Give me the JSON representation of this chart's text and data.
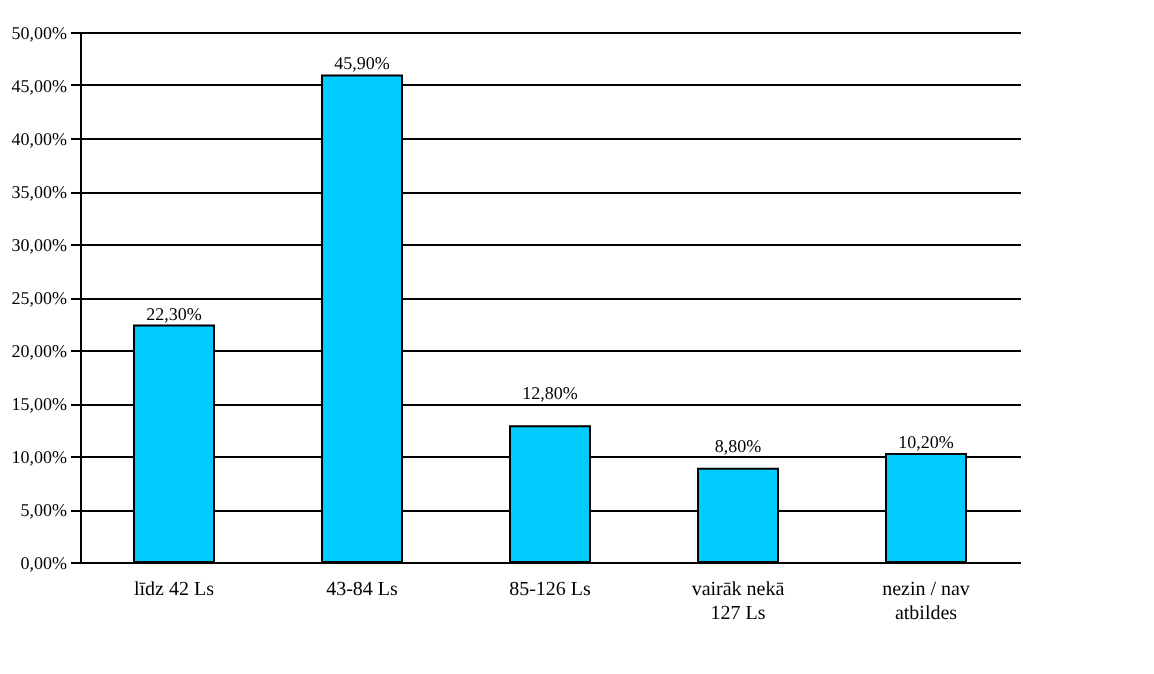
{
  "chart_data": {
    "type": "bar",
    "categories": [
      "līdz 42 Ls",
      "43-84 Ls",
      "85-126 Ls",
      "vairāk nekā 127 Ls",
      "nezin / nav atbildes"
    ],
    "values": [
      22.3,
      45.9,
      12.8,
      8.8,
      10.2
    ],
    "value_labels": [
      "22,30%",
      "45,90%",
      "12,80%",
      "8,80%",
      "10,20%"
    ],
    "color": "#00ccff",
    "ylim": [
      0,
      50
    ],
    "yticks": [
      {
        "value": 0,
        "label": "0,00%"
      },
      {
        "value": 5,
        "label": "5,00%"
      },
      {
        "value": 10,
        "label": "10,00%"
      },
      {
        "value": 15,
        "label": "15,00%"
      },
      {
        "value": 20,
        "label": "20,00%"
      },
      {
        "value": 25,
        "label": "25,00%"
      },
      {
        "value": 30,
        "label": "30,00%"
      },
      {
        "value": 35,
        "label": "35,00%"
      },
      {
        "value": 40,
        "label": "40,00%"
      },
      {
        "value": 45,
        "label": "45,00%"
      },
      {
        "value": 50,
        "label": "50,00%"
      }
    ],
    "grid": "y"
  }
}
